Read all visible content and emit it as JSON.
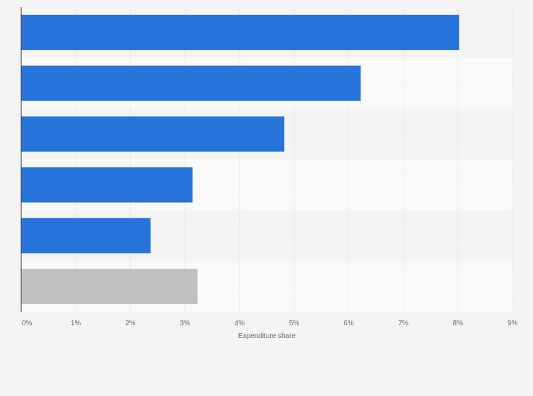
{
  "chart_data": {
    "type": "bar",
    "orientation": "horizontal",
    "title": "",
    "xlabel": "Expenditure share",
    "ylabel": "",
    "xlim": [
      0,
      9
    ],
    "tick_values": [
      0,
      1,
      2,
      3,
      4,
      5,
      6,
      7,
      8,
      9
    ],
    "tick_labels": [
      "0%",
      "1%",
      "2%",
      "3%",
      "4%",
      "5%",
      "6%",
      "7%",
      "8%",
      "9%"
    ],
    "categories": [
      "",
      "",
      "",
      "",
      "",
      ""
    ],
    "values": [
      8.02,
      6.22,
      4.82,
      3.14,
      2.37,
      3.23
    ],
    "bar_colors": [
      "#2775db",
      "#2775db",
      "#2775db",
      "#2775db",
      "#2775db",
      "#c0c0c0"
    ],
    "grid": true,
    "legend": "none"
  },
  "colors": {
    "background": "#f4f4f4",
    "band_dark": "#f4f4f4",
    "band_light": "#f9f9f9",
    "gridline": "#dedede",
    "axis": "#333333"
  }
}
